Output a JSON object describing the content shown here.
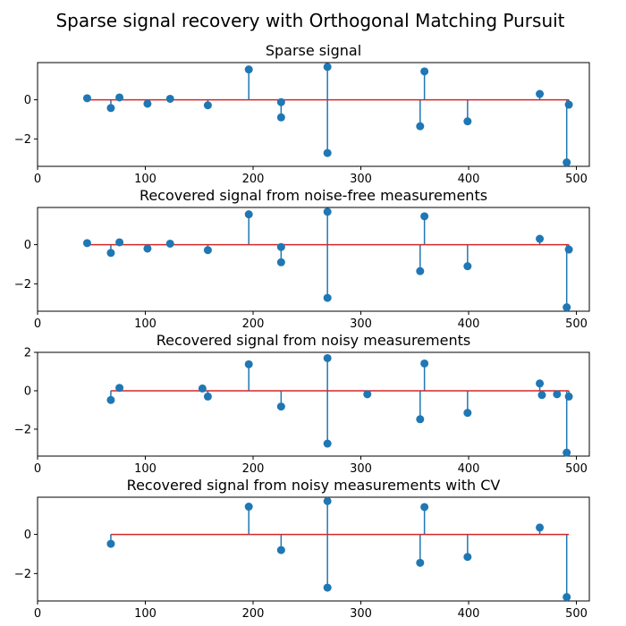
{
  "figure": {
    "suptitle": "Sparse signal recovery with Orthogonal Matching Pursuit"
  },
  "colors": {
    "stem": "#1f77b4",
    "baseline": "#d62728",
    "axes": "#000000"
  },
  "chart_data": [
    {
      "type": "stem",
      "title": "Sparse signal",
      "xlim": [
        0,
        512
      ],
      "ylim": [
        -3.4,
        1.9
      ],
      "xticks": [
        0,
        100,
        200,
        300,
        400,
        500
      ],
      "yticks": [
        -2,
        0
      ],
      "baseline": [
        46,
        493
      ],
      "points": [
        [
          46,
          0.08
        ],
        [
          68,
          -0.42
        ],
        [
          76,
          0.12
        ],
        [
          102,
          -0.2
        ],
        [
          123,
          0.05
        ],
        [
          158,
          -0.28
        ],
        [
          196,
          1.55
        ],
        [
          226,
          -0.12
        ],
        [
          226,
          -0.9
        ],
        [
          269,
          1.68
        ],
        [
          269,
          -2.72
        ],
        [
          355,
          -1.35
        ],
        [
          359,
          1.45
        ],
        [
          399,
          -1.1
        ],
        [
          466,
          0.3
        ],
        [
          491,
          -3.2
        ],
        [
          493,
          -0.25
        ]
      ]
    },
    {
      "type": "stem",
      "title": "Recovered signal from noise-free measurements",
      "xlim": [
        0,
        512
      ],
      "ylim": [
        -3.4,
        1.9
      ],
      "xticks": [
        0,
        100,
        200,
        300,
        400,
        500
      ],
      "yticks": [
        -2,
        0
      ],
      "baseline": [
        46,
        493
      ],
      "points": [
        [
          46,
          0.08
        ],
        [
          68,
          -0.42
        ],
        [
          76,
          0.12
        ],
        [
          102,
          -0.2
        ],
        [
          123,
          0.05
        ],
        [
          158,
          -0.28
        ],
        [
          196,
          1.55
        ],
        [
          226,
          -0.12
        ],
        [
          226,
          -0.9
        ],
        [
          269,
          1.68
        ],
        [
          269,
          -2.72
        ],
        [
          355,
          -1.35
        ],
        [
          359,
          1.45
        ],
        [
          399,
          -1.1
        ],
        [
          466,
          0.3
        ],
        [
          491,
          -3.2
        ],
        [
          493,
          -0.25
        ]
      ]
    },
    {
      "type": "stem",
      "title": "Recovered signal from noisy measurements",
      "xlim": [
        0,
        512
      ],
      "ylim": [
        -3.4,
        2.0
      ],
      "xticks": [
        0,
        100,
        200,
        300,
        400,
        500
      ],
      "yticks": [
        -2,
        0,
        2
      ],
      "baseline": [
        68,
        493
      ],
      "points": [
        [
          68,
          -0.48
        ],
        [
          76,
          0.15
        ],
        [
          153,
          0.12
        ],
        [
          158,
          -0.3
        ],
        [
          196,
          1.38
        ],
        [
          226,
          -0.82
        ],
        [
          269,
          1.7
        ],
        [
          269,
          -2.75
        ],
        [
          306,
          -0.18
        ],
        [
          355,
          -1.48
        ],
        [
          359,
          1.42
        ],
        [
          399,
          -1.15
        ],
        [
          466,
          0.38
        ],
        [
          468,
          -0.22
        ],
        [
          482,
          -0.18
        ],
        [
          491,
          -3.22
        ],
        [
          493,
          -0.3
        ]
      ]
    },
    {
      "type": "stem",
      "title": "Recovered signal from noisy measurements with CV",
      "xlim": [
        0,
        512
      ],
      "ylim": [
        -3.4,
        1.9
      ],
      "xticks": [
        0,
        100,
        200,
        300,
        400,
        500
      ],
      "yticks": [
        -2,
        0
      ],
      "baseline": [
        68,
        493
      ],
      "points": [
        [
          68,
          -0.48
        ],
        [
          196,
          1.42
        ],
        [
          226,
          -0.8
        ],
        [
          269,
          1.7
        ],
        [
          269,
          -2.72
        ],
        [
          355,
          -1.45
        ],
        [
          359,
          1.4
        ],
        [
          399,
          -1.15
        ],
        [
          466,
          0.35
        ],
        [
          491,
          -3.2
        ]
      ]
    }
  ]
}
